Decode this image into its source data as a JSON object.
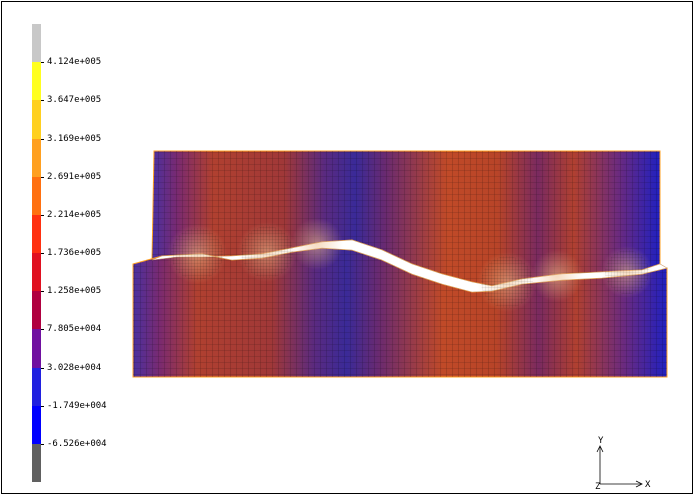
{
  "legend": {
    "ticks": [
      "4.124e+005",
      "3.647e+005",
      "3.169e+005",
      "2.691e+005",
      "2.214e+005",
      "1.736e+005",
      "1.258e+005",
      "7.805e+004",
      "3.028e+004",
      "-1.749e+004",
      "-6.526e+004"
    ],
    "colors": [
      "#c8c8c8",
      "#ffff20",
      "#ffd020",
      "#ffa020",
      "#ff7010",
      "#ff3010",
      "#e01020",
      "#b00040",
      "#7010a0",
      "#2020e0",
      "#0000ff",
      "#606060"
    ]
  },
  "mesh": {
    "palette": {
      "high": "#c84a20",
      "mid": "#8a2a50",
      "low": "#3a2090",
      "crack": "#ffffff",
      "outline": "#ffa020"
    }
  },
  "axes": {
    "y_label": "Y",
    "x_label": "X",
    "z_label": "Z"
  }
}
